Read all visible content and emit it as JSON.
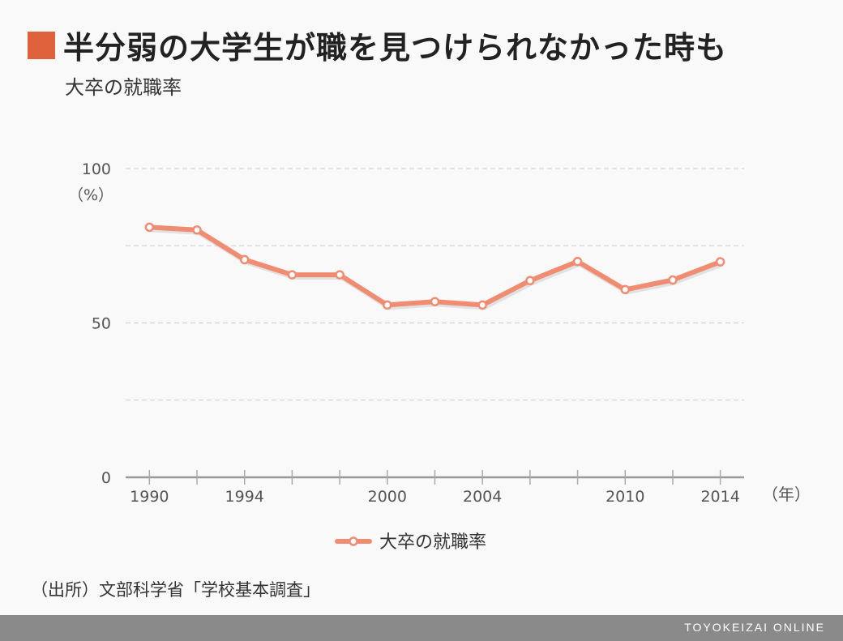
{
  "title": "半分弱の大学生が職を見つけられなかった時も",
  "subtitle": "大卒の就職率",
  "source": "（出所）文部科学省「学校基本調査」",
  "footer_brand": "TOYOKEIZAI ONLINE",
  "colors": {
    "accent": "#e0623d",
    "line": "#f08c72",
    "footer": "#8a8a8a"
  },
  "chart_data": {
    "type": "line",
    "title": "大卒の就職率",
    "ylim": [
      0,
      100
    ],
    "yticks": [
      0,
      50,
      100
    ],
    "yunit": "（%）",
    "xunit": "（年）",
    "xlim": [
      1989,
      2015
    ],
    "xtick_labels": [
      1990,
      1994,
      2000,
      2004,
      2010,
      2014
    ],
    "xtick_marks": [
      1990,
      1992,
      1994,
      1996,
      1998,
      2000,
      2002,
      2004,
      2006,
      2008,
      2010,
      2012,
      2014
    ],
    "grid": true,
    "legend": "bottom-center",
    "series": [
      {
        "name": "大卒の就職率",
        "x": [
          1990,
          1992,
          1994,
          1996,
          1998,
          2000,
          2002,
          2004,
          2006,
          2008,
          2010,
          2012,
          2014
        ],
        "values": [
          81.0,
          80.1,
          70.5,
          65.6,
          65.6,
          55.8,
          56.9,
          55.8,
          63.7,
          69.9,
          60.8,
          63.9,
          69.8
        ]
      }
    ]
  }
}
